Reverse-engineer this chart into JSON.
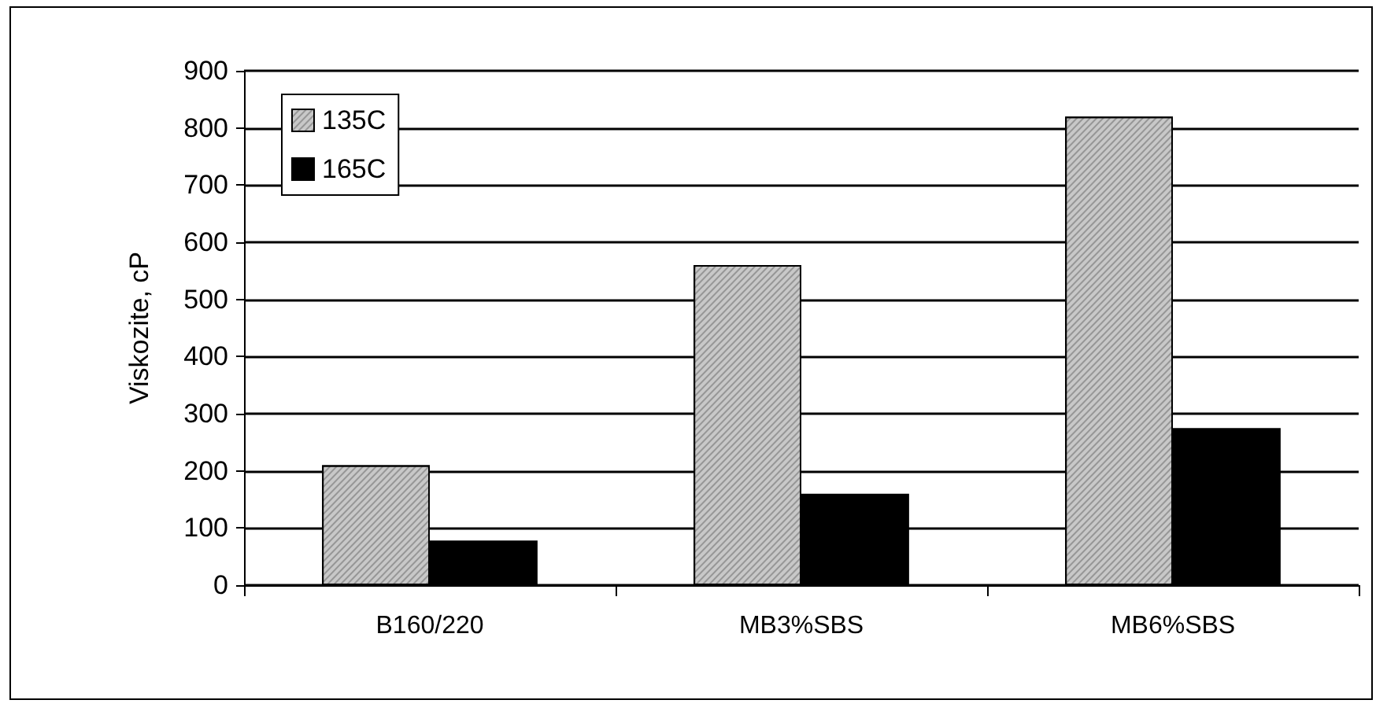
{
  "chart_data": {
    "type": "bar",
    "ylabel": "Viskozite, cP",
    "categories": [
      "B160/220",
      "MB3%SBS",
      "MB6%SBS"
    ],
    "series": [
      {
        "name": "135C",
        "color": "#c8c8c8",
        "values": [
          210,
          560,
          820
        ]
      },
      {
        "name": "165C",
        "color": "#000000",
        "values": [
          78,
          160,
          275
        ]
      }
    ],
    "ylim": [
      0,
      900
    ],
    "yticks": [
      0,
      100,
      200,
      300,
      400,
      500,
      600,
      700,
      800,
      900
    ],
    "grid": "y",
    "legend": "top left"
  }
}
